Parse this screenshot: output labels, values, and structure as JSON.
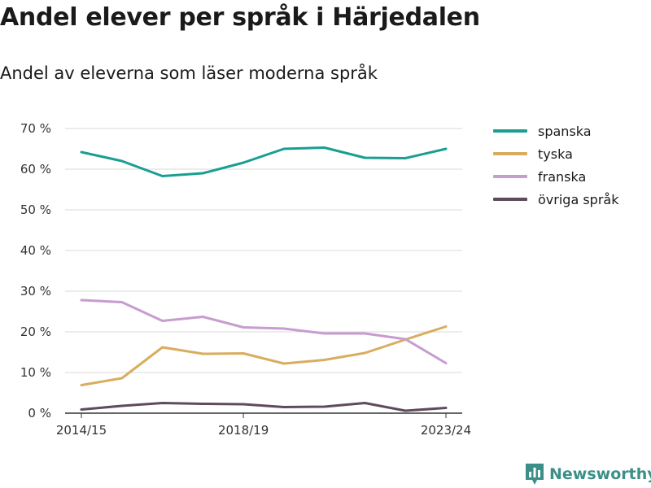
{
  "title": "Andel elever per språk i Härjedalen",
  "subtitle": "Andel av eleverna som läser moderna språk",
  "brand": {
    "name": "Newsworthy",
    "icon": "bar-chart-logo-icon"
  },
  "colors": {
    "spanska": "#1a9e92",
    "tyska": "#d9ad5e",
    "franska": "#c79ccf",
    "ovriga": "#5e4b5c",
    "grid": "#d9d9d9",
    "axis": "#333333",
    "brand": "#3b8f88"
  },
  "chart_data": {
    "type": "line",
    "x": [
      "2014/15",
      "2015/16",
      "2016/17",
      "2017/18",
      "2018/19",
      "2019/20",
      "2020/21",
      "2021/22",
      "2022/23",
      "2023/24"
    ],
    "x_tick_labels": [
      "2014/15",
      "2018/19",
      "2023/24"
    ],
    "y_ticks": [
      0,
      10,
      20,
      30,
      40,
      50,
      60,
      70
    ],
    "y_tick_labels": [
      "0 %",
      "10 %",
      "20 %",
      "30 %",
      "40 %",
      "50 %",
      "60 %",
      "70 %"
    ],
    "ylim": [
      0,
      70
    ],
    "grid": true,
    "legend_position": "right",
    "series": [
      {
        "name": "spanska",
        "color": "#1a9e92",
        "values": [
          64.2,
          62.0,
          58.3,
          59.0,
          61.6,
          65.0,
          65.3,
          62.8,
          62.7,
          65.0
        ]
      },
      {
        "name": "tyska",
        "color": "#d9ad5e",
        "values": [
          6.9,
          8.6,
          16.2,
          14.6,
          14.7,
          12.2,
          13.1,
          14.8,
          18.1,
          21.3
        ]
      },
      {
        "name": "franska",
        "color": "#c79ccf",
        "values": [
          27.8,
          27.3,
          22.7,
          23.7,
          21.1,
          20.8,
          19.6,
          19.6,
          18.2,
          12.3
        ]
      },
      {
        "name": "övriga språk",
        "color": "#5e4b5c",
        "values": [
          0.9,
          1.8,
          2.5,
          2.3,
          2.2,
          1.5,
          1.6,
          2.5,
          0.6,
          1.3
        ]
      }
    ]
  }
}
